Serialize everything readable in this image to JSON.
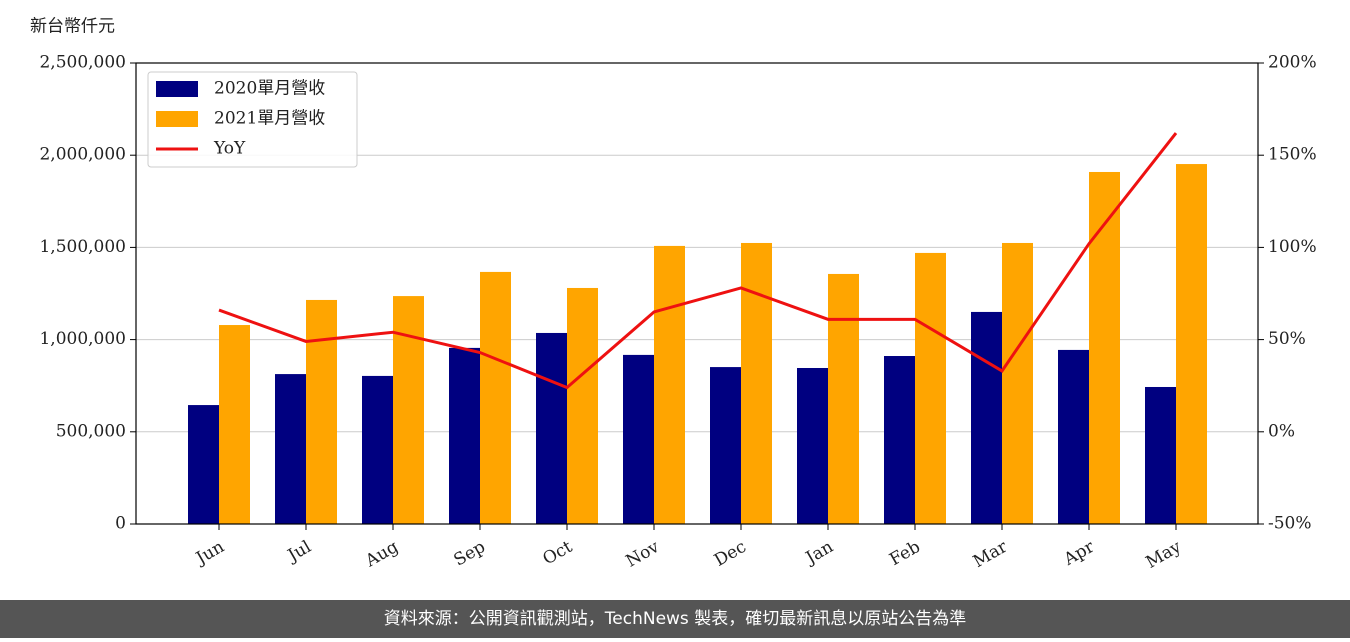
{
  "chart_data": {
    "type": "bar",
    "y_label": "新台幣仟元",
    "categories": [
      "Jun",
      "Jul",
      "Aug",
      "Sep",
      "Oct",
      "Nov",
      "Dec",
      "Jan",
      "Feb",
      "Mar",
      "Apr",
      "May"
    ],
    "series": [
      {
        "name": "2020單月營收",
        "color": "#000080",
        "values": [
          645000,
          813000,
          803000,
          955000,
          1036000,
          917000,
          851000,
          846000,
          911000,
          1150000,
          944000,
          743000
        ]
      },
      {
        "name": "2021單月營收",
        "color": "#ffa500",
        "values": [
          1079000,
          1215000,
          1236000,
          1367000,
          1280000,
          1508000,
          1524000,
          1356000,
          1470000,
          1524000,
          1909000,
          1952000
        ]
      },
      {
        "name": "YoY",
        "type": "line",
        "axis": "y2",
        "color": "#ee1111",
        "values": [
          66,
          49,
          54,
          43,
          24,
          65,
          78,
          61,
          61,
          33,
          102,
          162
        ]
      }
    ],
    "ylim": [
      0,
      2500000
    ],
    "yticks": [
      0,
      {
        "value": 500000,
        "label": "500,000"
      },
      {
        "value": 1000000,
        "label": "1,000,000"
      },
      {
        "value": 1500000,
        "label": "1,500,000"
      },
      {
        "value": 2000000,
        "label": "2,000,000"
      },
      {
        "value": 2500000,
        "label": "2,500,000"
      }
    ],
    "y2lim": [
      -50,
      200
    ],
    "y2ticks": [
      {
        "value": -50,
        "label": "-50%"
      },
      {
        "value": 0,
        "label": "0%"
      },
      {
        "value": 50,
        "label": "50%"
      },
      {
        "value": 100,
        "label": "100%"
      },
      {
        "value": 150,
        "label": "150%"
      },
      {
        "value": 200,
        "label": "200%"
      }
    ],
    "grid": true,
    "legend": "upper left",
    "source": "資料來源：公開資訊觀測站，TechNews 製表，確切最新訊息以原站公告為準"
  }
}
